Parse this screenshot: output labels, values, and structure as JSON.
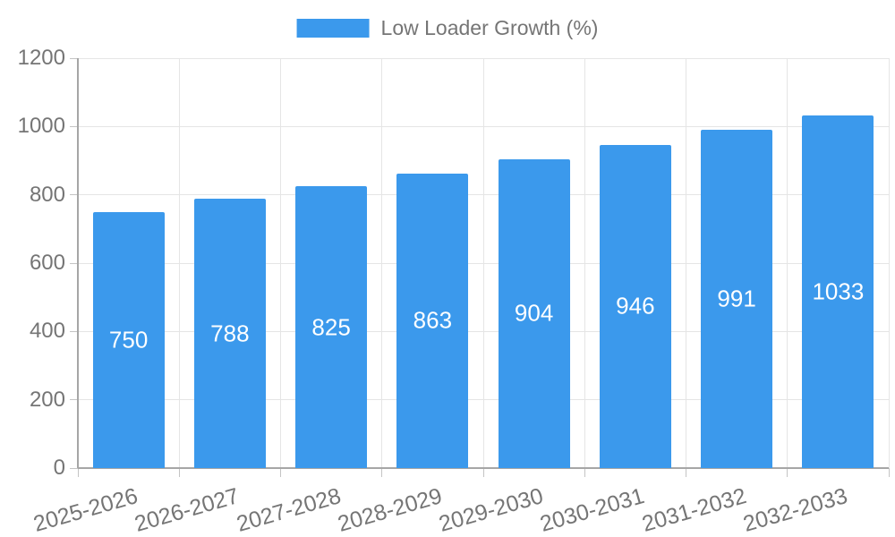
{
  "legend": {
    "label": "Low Loader Growth (%)"
  },
  "chart_data": {
    "type": "bar",
    "title": "",
    "xlabel": "",
    "ylabel": "",
    "series_name": "Low Loader Growth (%)",
    "categories": [
      "2025-2026",
      "2026-2027",
      "2027-2028",
      "2028-2029",
      "2029-2030",
      "2030-2031",
      "2031-2032",
      "2032-2033"
    ],
    "values": [
      750,
      788,
      825,
      863,
      904,
      946,
      991,
      1033
    ],
    "bar_labels": [
      "750",
      "788",
      "825",
      "863",
      "904",
      "946",
      "991",
      "1033"
    ],
    "ylim": [
      0,
      1200
    ],
    "yticks": [
      0,
      200,
      400,
      600,
      800,
      1000,
      1200
    ],
    "grid": true,
    "legend_position": "top-center",
    "colors": {
      "bar": "#3b99ec",
      "bar_label": "#ffffff",
      "grid": "#e5e5e5",
      "axis": "#a6a6a6",
      "tick": "#c4c4c4",
      "tick_label": "#757575",
      "background": "#ffffff"
    }
  }
}
